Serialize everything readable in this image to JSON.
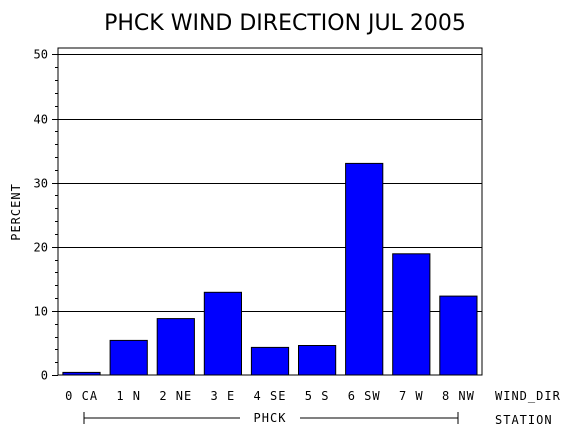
{
  "chart_data": {
    "type": "bar",
    "title": "PHCK WIND DIRECTION JUL 2005",
    "ylabel": "PERCENT",
    "xlabel": "WIND_DIR",
    "group_axis_label": "STATION",
    "group_name": "PHCK",
    "categories": [
      "0 CA",
      "1 N",
      "2 NE",
      "3 E",
      "4 SE",
      "5 S",
      "6 SW",
      "7 W",
      "8 NW"
    ],
    "values": [
      0.4,
      5.4,
      8.8,
      12.9,
      4.3,
      4.6,
      33.0,
      18.9,
      12.3
    ],
    "ylim": [
      0,
      51
    ],
    "yticks": [
      0,
      10,
      20,
      30,
      40,
      50
    ],
    "grid": true,
    "colors": {
      "bar": "#0000ff",
      "axis": "#000000",
      "grid": "#000000"
    }
  }
}
